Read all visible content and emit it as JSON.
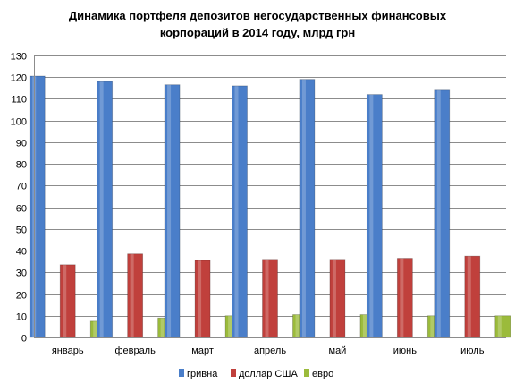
{
  "chart_data": {
    "type": "bar",
    "title_line1": "Динамика портфеля депозитов негосударственных финансовых",
    "title_line2": "корпораций в 2014 году, млрд грн",
    "categories": [
      "январь",
      "февраль",
      "март",
      "апрель",
      "май",
      "июнь",
      "июль"
    ],
    "series": [
      {
        "name": "гривна",
        "color": "#4a7ec9",
        "values": [
          120.5,
          118,
          116.5,
          116,
          119,
          112,
          114
        ]
      },
      {
        "name": "доллар США",
        "color": "#c0403c",
        "values": [
          33.5,
          38.5,
          35.5,
          36,
          36,
          36.5,
          37.5
        ]
      },
      {
        "name": "евро",
        "color": "#9bbb3b",
        "values": [
          7.5,
          9,
          10,
          10.5,
          10.5,
          10,
          10
        ]
      }
    ],
    "ylim": [
      0,
      130
    ],
    "yticks": [
      0,
      10,
      20,
      30,
      40,
      50,
      60,
      70,
      80,
      90,
      100,
      110,
      120,
      130
    ],
    "grid": true,
    "legend_position": "bottom"
  }
}
